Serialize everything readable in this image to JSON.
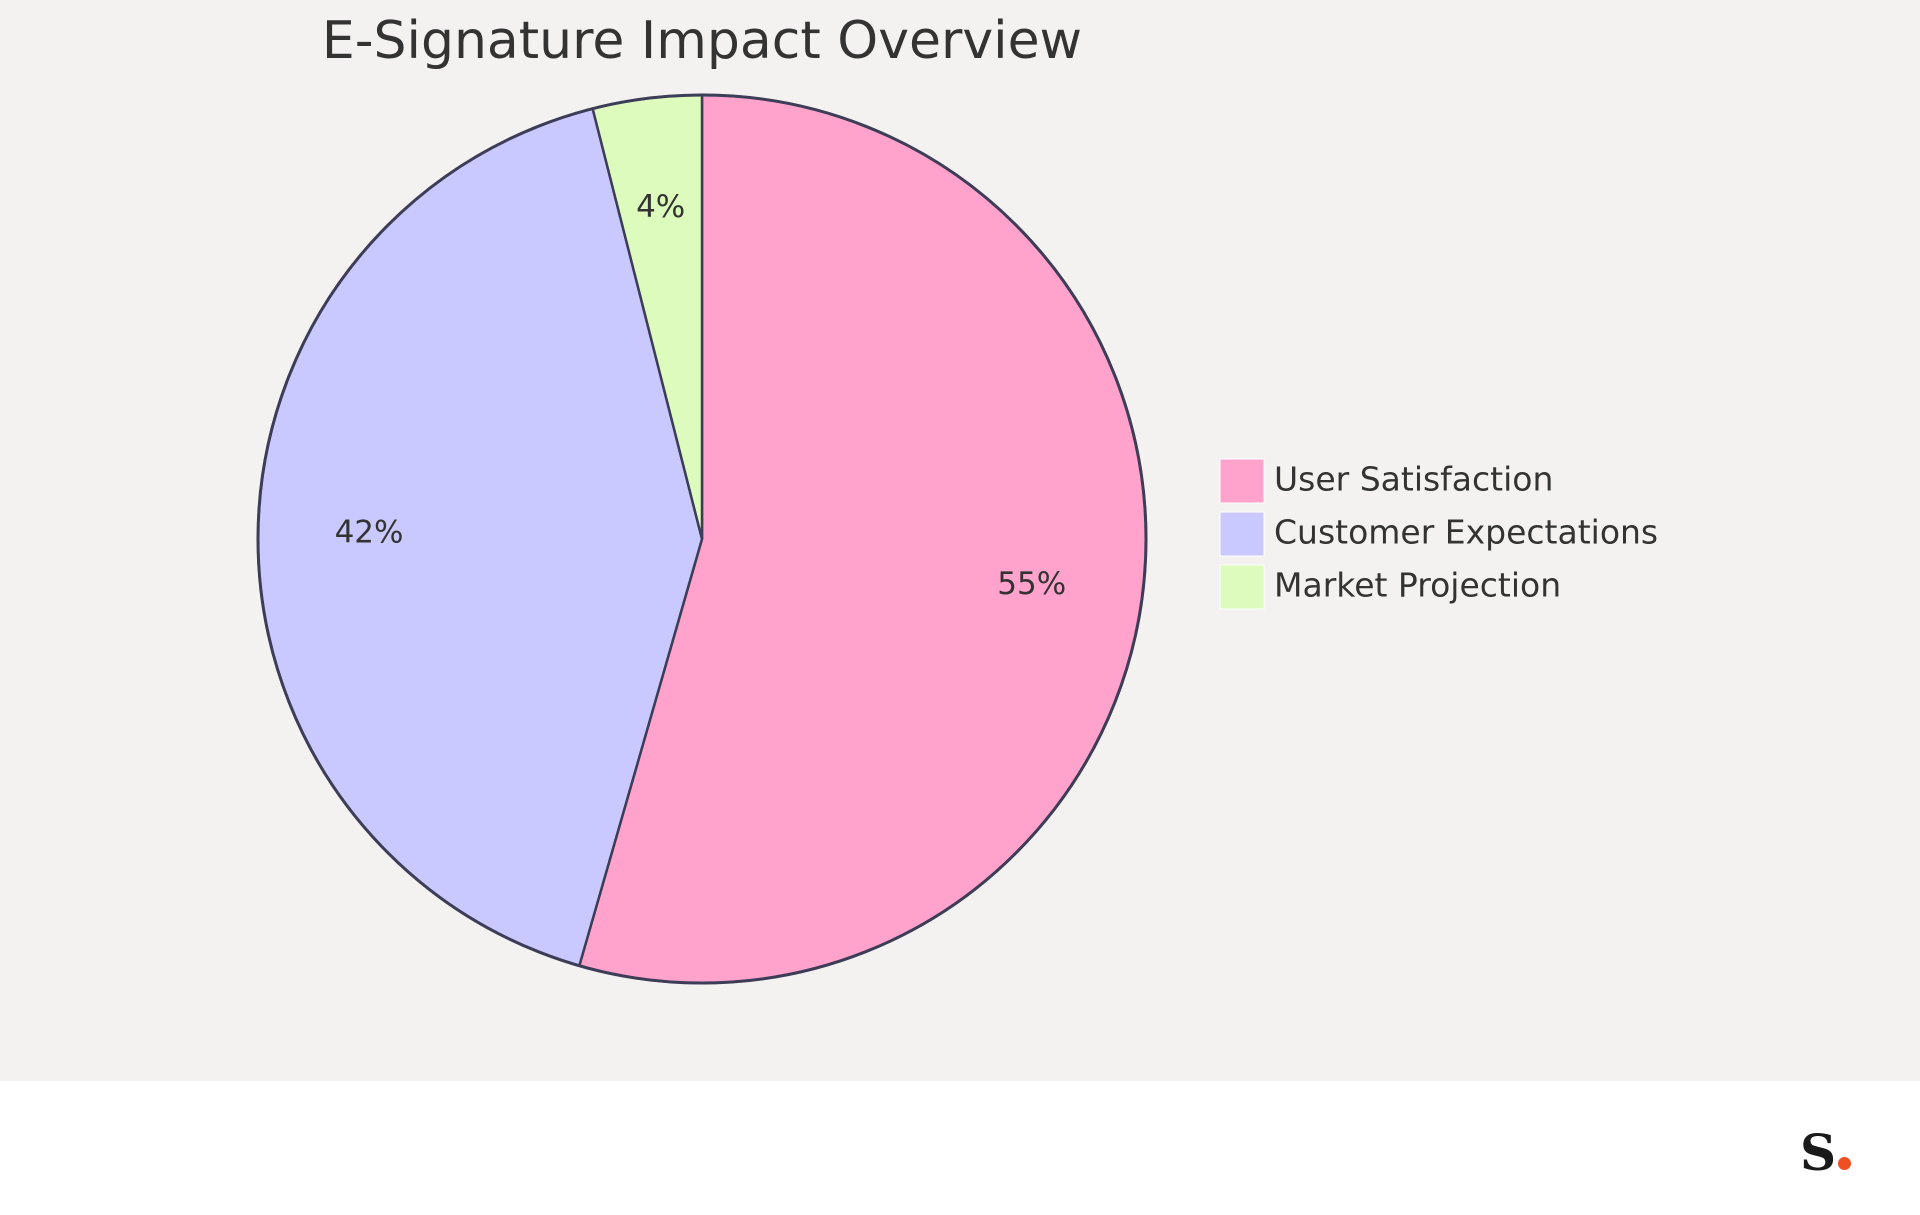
{
  "chart_data": {
    "type": "pie",
    "title": "E-Signature Impact Overview",
    "slices": [
      {
        "label": "User Satisfaction",
        "value": 55,
        "display": "55%",
        "color": "#ffa3cc"
      },
      {
        "label": "Customer Expectations",
        "value": 42,
        "display": "42%",
        "color": "#c9c9ff"
      },
      {
        "label": "Market Projection",
        "value": 4,
        "display": "4%",
        "color": "#dcfbbd"
      }
    ],
    "legend_position": "right",
    "stroke_color": "#3d3d57"
  },
  "brand": {
    "logo_text": "S"
  }
}
